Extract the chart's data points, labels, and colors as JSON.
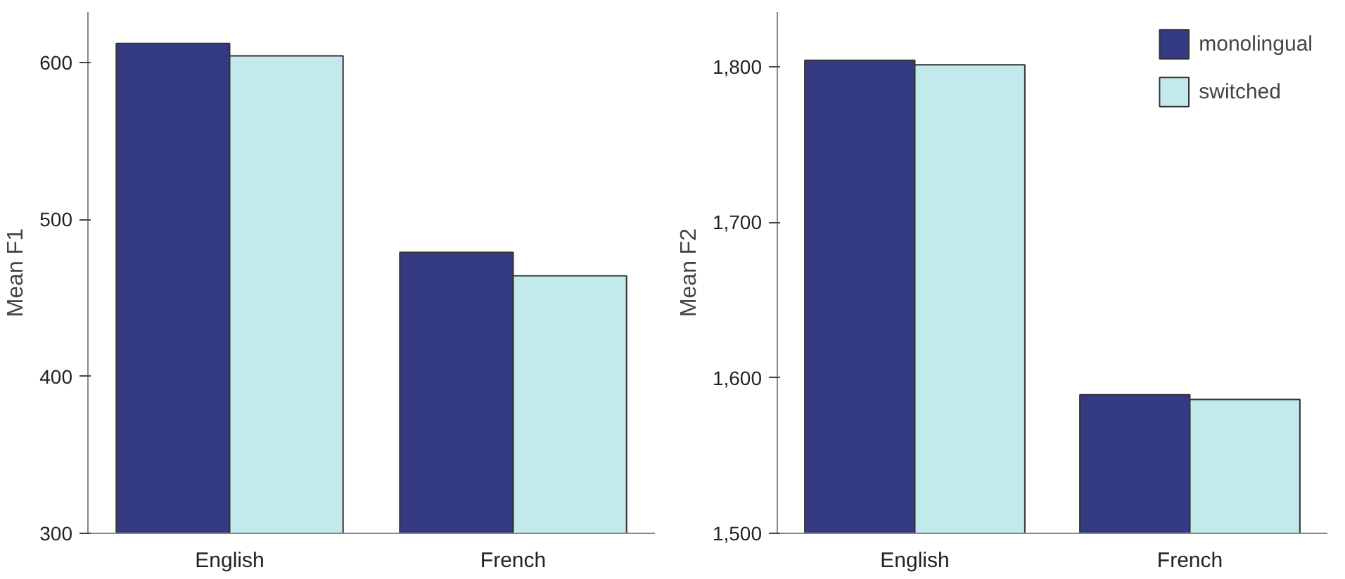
{
  "chart_data": [
    {
      "type": "bar",
      "categories": [
        "English",
        "French"
      ],
      "ylabel": "Mean F1",
      "ylim": [
        300,
        632
      ],
      "yticks": [
        300,
        400,
        500,
        600
      ],
      "grid": false,
      "legend": false,
      "series": [
        {
          "color": "#343b83",
          "values": [
            612,
            479
          ]
        },
        {
          "color": "#c2e9ec",
          "values": [
            604,
            464
          ]
        }
      ]
    },
    {
      "type": "bar",
      "categories": [
        "English",
        "French"
      ],
      "ylabel": "Mean F2",
      "ylim": [
        1500,
        1835
      ],
      "yticks": [
        {
          "value": 1500,
          "label": "1,500"
        },
        {
          "value": 1600,
          "label": "1,600"
        },
        {
          "value": 1700,
          "label": "1,700"
        },
        {
          "value": 1800,
          "label": "1,800"
        }
      ],
      "grid": false,
      "legend": "top right",
      "series": [
        {
          "name": "monolingual",
          "color": "#343b83",
          "values": [
            1804,
            1589
          ]
        },
        {
          "name": "switched",
          "color": "#c2e9ec",
          "values": [
            1801,
            1586
          ]
        }
      ]
    }
  ]
}
